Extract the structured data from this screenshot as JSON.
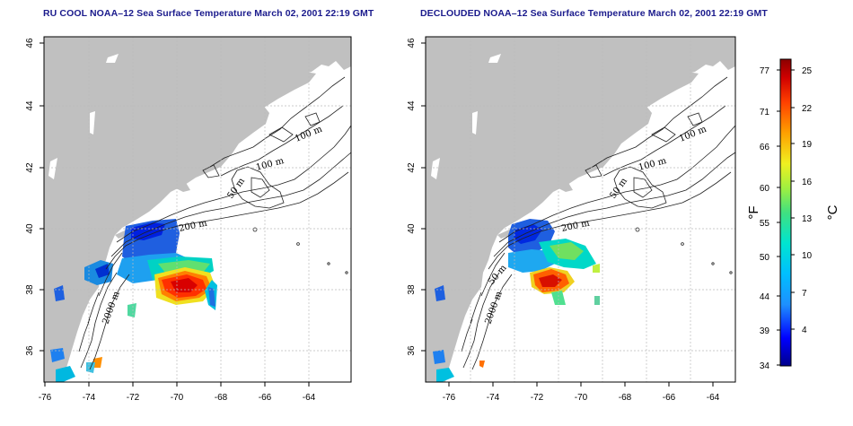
{
  "panels": [
    {
      "title": "RU COOL NOAA–12 Sea Surface Temperature March 02, 2001 22:19 GMT",
      "xticks": [
        "-76",
        "-74",
        "-72",
        "-70",
        "-68",
        "-66",
        "-64"
      ],
      "yticks": [
        "36",
        "38",
        "40",
        "42",
        "44",
        "46"
      ],
      "contour_labels": [
        "100 m",
        "100 m",
        "50 m",
        "200 m",
        "2000 m"
      ]
    },
    {
      "title": "DECLOUDED NOAA–12 Sea Surface Temperature March 02, 2001 22:19 GMT",
      "xticks": [
        "-76",
        "-74",
        "-72",
        "-70",
        "-68",
        "-66",
        "-64"
      ],
      "yticks": [
        "36",
        "38",
        "40",
        "42",
        "44",
        "46"
      ],
      "contour_labels": [
        "100 m",
        "100 m",
        "50 m",
        "200 m",
        "2000 m",
        "50 m"
      ]
    }
  ],
  "colorbar": {
    "fahrenheit_label": "°F",
    "celsius_label": "°C",
    "fahrenheit_ticks": [
      "77",
      "71",
      "66",
      "60",
      "55",
      "50",
      "44",
      "39",
      "34"
    ],
    "celsius_ticks": [
      "25",
      "22",
      "19",
      "16",
      "13",
      "10",
      "7",
      "4"
    ],
    "colors": [
      "#00008b",
      "#0000ff",
      "#1e90ff",
      "#00bfff",
      "#00e5d0",
      "#40e080",
      "#a0f040",
      "#f0f020",
      "#ffa000",
      "#ff4000",
      "#d00000",
      "#8b0000"
    ]
  },
  "colors": {
    "land": "#c0c0c0",
    "ocean": "#ffffff",
    "grid": "#bbbbbb",
    "title": "#1a1a8c"
  }
}
